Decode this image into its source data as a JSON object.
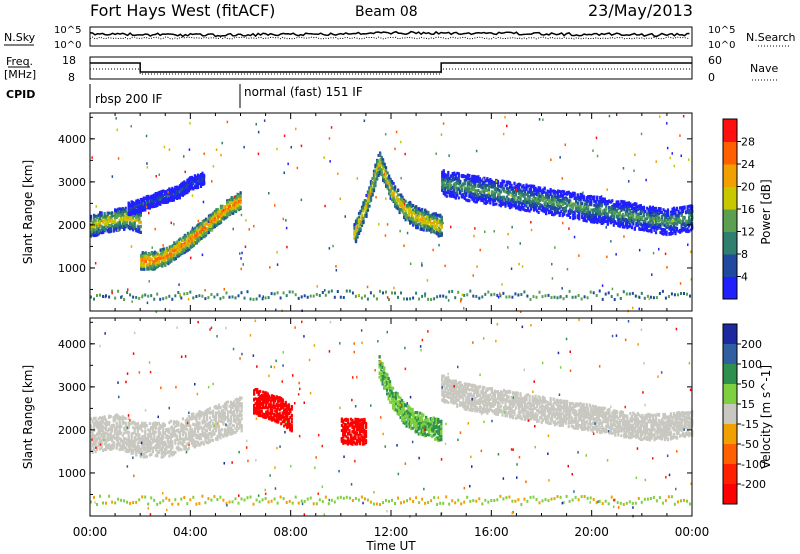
{
  "header": {
    "station": "Fort Hays West (fitACF)",
    "beam": "Beam 08",
    "date": "23/May/2013"
  },
  "summary_panel": {
    "nsky_label": "N.Sky",
    "nsky_top": "10^5",
    "nsky_bottom": "10^0",
    "nsearch_label": "N.Search",
    "nsearch_top": "10^5",
    "nsearch_bottom": "10^0",
    "freq_label_line1": "Freq.",
    "freq_label_line2": "[MHz]",
    "freq_top": "18",
    "freq_bottom": "8",
    "nave_label": "Nave",
    "nave_top": "60",
    "nave_bottom": "0",
    "cpid_label": "CPID",
    "cpid_modes": [
      {
        "name": "rbsp 200 IF",
        "start_hour": 0
      },
      {
        "name": "normal (fast) 151 IF",
        "start_hour": 6
      }
    ]
  },
  "chart_data": [
    {
      "type": "heatmap",
      "quantity": "power",
      "ylabel": "Slant Range [km]",
      "xlabel": "",
      "ylim": [
        0,
        4600
      ],
      "yticks": [
        "1000",
        "2000",
        "3000",
        "4000"
      ],
      "colorbar_label": "Power [dB]",
      "colorbar_ticks": [
        "4",
        "8",
        "12",
        "16",
        "20",
        "24",
        "28"
      ],
      "colorbar_colors": [
        "#2020ff",
        "#1f4aa0",
        "#2f7f6f",
        "#5aa050",
        "#c8c800",
        "#f0a000",
        "#ff6000",
        "#ff1010"
      ],
      "bands": [
        {
          "x": [
            0.0,
            0.5,
            1.0,
            1.5,
            2.0
          ],
          "center": [
            2000,
            2100,
            2150,
            2200,
            2100
          ],
          "width": 250,
          "level": 20
        },
        {
          "x": [
            2.0,
            2.5,
            3.0,
            3.5,
            4.0,
            4.5,
            5.0,
            5.5,
            6.0
          ],
          "center": [
            1200,
            1200,
            1300,
            1500,
            1700,
            1950,
            2200,
            2450,
            2600
          ],
          "width": 200,
          "level": 26
        },
        {
          "x": [
            1.5,
            2.5,
            3.5,
            4.0,
            4.5
          ],
          "center": [
            2400,
            2600,
            2800,
            3000,
            3100
          ],
          "width": 150,
          "level": 8
        },
        {
          "x": [
            10.5,
            11.0,
            11.5,
            12.0,
            12.5,
            13.0,
            13.5,
            14.0
          ],
          "center": [
            1800,
            2500,
            3500,
            2800,
            2400,
            2200,
            2100,
            2000
          ],
          "width": 250,
          "level": 22
        },
        {
          "x": [
            14.0,
            15.0,
            16.0,
            17.0,
            18.0,
            19.0,
            20.0,
            21.0,
            22.0,
            23.0,
            24.0
          ],
          "center": [
            3000,
            2900,
            2800,
            2700,
            2600,
            2500,
            2400,
            2300,
            2200,
            2100,
            2200
          ],
          "width": 300,
          "level": 14
        }
      ]
    },
    {
      "type": "heatmap",
      "quantity": "velocity",
      "ylabel": "Slant Range [km]",
      "xlabel": "Time UT",
      "ylim": [
        0,
        4600
      ],
      "yticks": [
        "1000",
        "2000",
        "3000",
        "4000"
      ],
      "xticks": [
        "00:00",
        "04:00",
        "08:00",
        "12:00",
        "16:00",
        "20:00",
        "00:00"
      ],
      "colorbar_label": "Velocity [m s^-1]",
      "colorbar_ticks": [
        "200",
        "100",
        "50",
        "15",
        "-15",
        "-50",
        "-100",
        "-200"
      ],
      "colorbar_colors": [
        "#1c2aa0",
        "#2f5fa0",
        "#2f8f4f",
        "#7fd040",
        "#c8c8c0",
        "#f0a000",
        "#ff6000",
        "#ff2000",
        "#ff0000"
      ],
      "bands": [
        {
          "x": [
            0.0,
            1.0,
            2.0,
            3.0,
            4.0,
            5.0,
            6.0
          ],
          "center": [
            1900,
            2000,
            1800,
            1800,
            2000,
            2200,
            2400
          ],
          "width": 400,
          "level": 0
        },
        {
          "x": [
            6.5,
            7.0,
            7.5,
            8.0
          ],
          "center": [
            2700,
            2600,
            2500,
            2300
          ],
          "width": 300,
          "level": -200
        },
        {
          "x": [
            10.0,
            10.5,
            11.0
          ],
          "center": [
            2000,
            2000,
            2000
          ],
          "width": 300,
          "level": -200
        },
        {
          "x": [
            11.5,
            12.0,
            12.5,
            13.0,
            14.0
          ],
          "center": [
            3500,
            2800,
            2400,
            2200,
            2000
          ],
          "width": 250,
          "level": 30
        },
        {
          "x": [
            14.0,
            15.0,
            16.0,
            17.0,
            18.0,
            19.0,
            20.0,
            21.0,
            22.0,
            23.0,
            24.0
          ],
          "center": [
            3000,
            2800,
            2700,
            2600,
            2500,
            2400,
            2300,
            2200,
            2100,
            2100,
            2200
          ],
          "width": 300,
          "level": 0
        }
      ]
    }
  ]
}
